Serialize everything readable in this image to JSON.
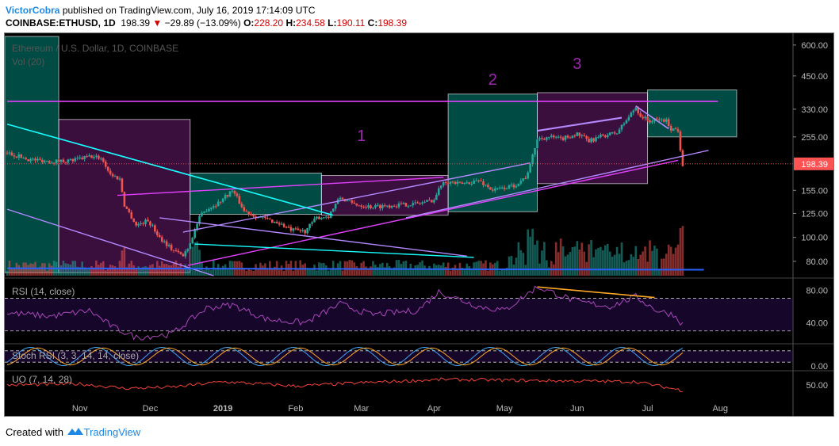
{
  "header": {
    "author": "VictorCobra",
    "published_text": "published on TradingView.com, July 16, 2019 17:14:09 UTC",
    "symbol": "COINBASE:ETHUSD, 1D",
    "last": "198.39",
    "change": "−29.89 (−13.09%)",
    "open_label": "O:",
    "open": "228.20",
    "high_label": "H:",
    "high": "234.58",
    "low_label": "L:",
    "low": "190.11",
    "close_label": "C:",
    "close": "198.39"
  },
  "footer": {
    "created_with": "Created with",
    "brand": "TradingView"
  },
  "colors": {
    "background": "#000000",
    "up": "#26a69a",
    "down": "#ef5350",
    "magenta": "#e040fb",
    "violet": "#b388ff",
    "cyan": "#18ffff",
    "blue": "#2962ff",
    "orange": "#ffa726",
    "label_purple": "#9c27b0",
    "price_tag": "#ff5252",
    "box_purple": "#6a1b6f",
    "box_teal": "#00897b"
  },
  "chart_data": [
    {
      "type": "candlestick",
      "title": "Ethereum / U.S. Dollar, 1D, COINBASE",
      "volume_label": "Vol (20)",
      "x_tick_labels": [
        "Nov",
        "Dec",
        "2019",
        "Feb",
        "Mar",
        "Apr",
        "May",
        "Jun",
        "Jul",
        "Aug"
      ],
      "y_scale": "log",
      "y_tick_labels": [
        "600.00",
        "450.00",
        "330.00",
        "255.00",
        "198.39",
        "155.00",
        "125.00",
        "100.00",
        "80.00"
      ],
      "y_ticks": [
        600,
        450,
        330,
        255,
        155,
        125,
        100,
        80
      ],
      "ylim": [
        70,
        650
      ],
      "x_range": [
        "2018-10-01",
        "2019-08-31"
      ],
      "last_price": 198.39,
      "price_path": [
        [
          "2018-10-01",
          220
        ],
        [
          "2018-10-10",
          207
        ],
        [
          "2018-10-20",
          203
        ],
        [
          "2018-10-29",
          205
        ],
        [
          "2018-11-05",
          212
        ],
        [
          "2018-11-10",
          210
        ],
        [
          "2018-11-14",
          180
        ],
        [
          "2018-11-18",
          172
        ],
        [
          "2018-11-20",
          135
        ],
        [
          "2018-11-25",
          112
        ],
        [
          "2018-11-30",
          117
        ],
        [
          "2018-12-05",
          100
        ],
        [
          "2018-12-10",
          90
        ],
        [
          "2018-12-15",
          84
        ],
        [
          "2018-12-18",
          95
        ],
        [
          "2018-12-22",
          120
        ],
        [
          "2018-12-25",
          130
        ],
        [
          "2018-12-30",
          138
        ],
        [
          "2019-01-05",
          155
        ],
        [
          "2019-01-10",
          128
        ],
        [
          "2019-01-15",
          122
        ],
        [
          "2019-01-20",
          118
        ],
        [
          "2019-01-25",
          114
        ],
        [
          "2019-01-30",
          107
        ],
        [
          "2019-02-05",
          106
        ],
        [
          "2019-02-10",
          120
        ],
        [
          "2019-02-15",
          122
        ],
        [
          "2019-02-20",
          145
        ],
        [
          "2019-02-25",
          137
        ],
        [
          "2019-03-05",
          133
        ],
        [
          "2019-03-15",
          135
        ],
        [
          "2019-03-25",
          137
        ],
        [
          "2019-04-01",
          142
        ],
        [
          "2019-04-05",
          170
        ],
        [
          "2019-04-12",
          164
        ],
        [
          "2019-04-20",
          170
        ],
        [
          "2019-04-26",
          155
        ],
        [
          "2019-05-05",
          162
        ],
        [
          "2019-05-10",
          175
        ],
        [
          "2019-05-12",
          195
        ],
        [
          "2019-05-15",
          250
        ],
        [
          "2019-05-20",
          255
        ],
        [
          "2019-05-25",
          250
        ],
        [
          "2019-06-01",
          262
        ],
        [
          "2019-06-06",
          245
        ],
        [
          "2019-06-12",
          258
        ],
        [
          "2019-06-18",
          265
        ],
        [
          "2019-06-22",
          298
        ],
        [
          "2019-06-26",
          336
        ],
        [
          "2019-06-28",
          310
        ],
        [
          "2019-07-02",
          295
        ],
        [
          "2019-07-06",
          300
        ],
        [
          "2019-07-09",
          296
        ],
        [
          "2019-07-11",
          275
        ],
        [
          "2019-07-14",
          272
        ],
        [
          "2019-07-15",
          228
        ],
        [
          "2019-07-16",
          198.39
        ]
      ],
      "annotations": [
        "1",
        "2",
        "3"
      ]
    },
    {
      "type": "line",
      "name": "RSI (14, close)",
      "ylim": [
        20,
        90
      ],
      "y_tick_labels": [
        "80.00",
        "40.00"
      ],
      "bands": [
        70,
        30
      ],
      "series": [
        {
          "name": "RSI",
          "points": [
            [
              "2018-10-01",
              52
            ],
            [
              "2018-10-20",
              48
            ],
            [
              "2018-11-05",
              55
            ],
            [
              "2018-11-15",
              35
            ],
            [
              "2018-11-25",
              22
            ],
            [
              "2018-12-10",
              26
            ],
            [
              "2018-12-25",
              58
            ],
            [
              "2019-01-05",
              62
            ],
            [
              "2019-01-20",
              44
            ],
            [
              "2019-02-05",
              40
            ],
            [
              "2019-02-20",
              63
            ],
            [
              "2019-03-05",
              50
            ],
            [
              "2019-03-25",
              55
            ],
            [
              "2019-04-03",
              78
            ],
            [
              "2019-04-20",
              60
            ],
            [
              "2019-05-01",
              55
            ],
            [
              "2019-05-15",
              84
            ],
            [
              "2019-06-01",
              66
            ],
            [
              "2019-06-15",
              60
            ],
            [
              "2019-06-26",
              72
            ],
            [
              "2019-07-05",
              55
            ],
            [
              "2019-07-12",
              50
            ],
            [
              "2019-07-16",
              38
            ]
          ]
        }
      ]
    },
    {
      "type": "line",
      "name": "Stoch RSI (3, 3, 14, 14, close)",
      "ylim": [
        0,
        100
      ],
      "y_tick_labels": [
        "0.00"
      ],
      "series": [
        {
          "name": "K",
          "period_days": 14
        },
        {
          "name": "D",
          "period_days": 14
        }
      ]
    },
    {
      "type": "line",
      "name": "UO (7, 14, 28)",
      "ylim": [
        30,
        70
      ],
      "y_tick_labels": [
        "50.00"
      ],
      "series": [
        {
          "name": "UO",
          "points": [
            [
              "2018-10-01",
              50
            ],
            [
              "2018-11-01",
              52
            ],
            [
              "2018-11-20",
              44
            ],
            [
              "2018-12-10",
              46
            ],
            [
              "2019-01-01",
              56
            ],
            [
              "2019-02-01",
              48
            ],
            [
              "2019-03-01",
              54
            ],
            [
              "2019-04-05",
              60
            ],
            [
              "2019-05-15",
              58
            ],
            [
              "2019-06-26",
              56
            ],
            [
              "2019-07-16",
              40
            ]
          ]
        }
      ]
    }
  ]
}
